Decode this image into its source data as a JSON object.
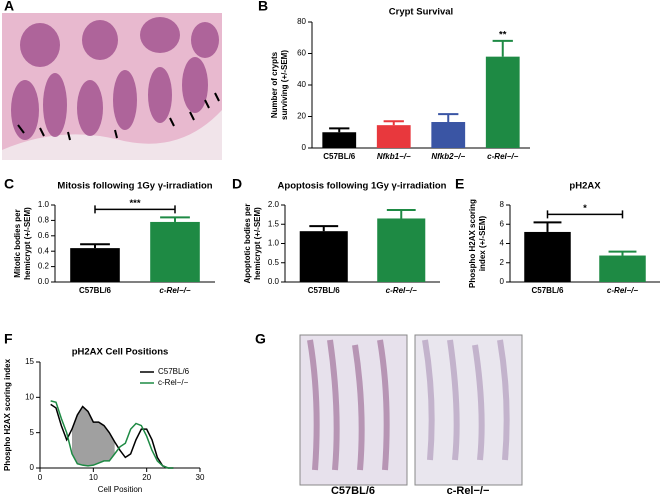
{
  "panel_labels": [
    "A",
    "B",
    "C",
    "D",
    "E",
    "F",
    "G"
  ],
  "images": {
    "g_labels": [
      "C57BL/6",
      "c-Rel−/−"
    ]
  },
  "chart_data": [
    {
      "type": "bar",
      "title": "Crypt Survival",
      "ylabel": [
        "Number of crypts",
        "surviving (+/-SEM)"
      ],
      "categories": [
        "C57BL/6",
        "Nfkb1−/−",
        "Nfkb2−/−",
        "c-Rel−/−"
      ],
      "values": [
        10,
        14.5,
        16.5,
        58
      ],
      "errors": [
        2.5,
        2.5,
        5,
        10
      ],
      "colors": [
        "#000000",
        "#e8383d",
        "#3a55a4",
        "#1e8a44"
      ],
      "ylim": [
        0,
        80
      ],
      "yticks": [
        0,
        20,
        40,
        60,
        80
      ],
      "annotations": [
        {
          "text": "**",
          "category": "c-Rel−/−"
        }
      ]
    },
    {
      "type": "bar",
      "title": "Mitosis following 1Gy γ-irradiation",
      "ylabel": [
        "Mitotic bodies per",
        "hemicrypt (+/-SEM)"
      ],
      "categories": [
        "C57BL/6",
        "c-Rel−/−"
      ],
      "values": [
        0.44,
        0.78
      ],
      "errors": [
        0.05,
        0.06
      ],
      "colors": [
        "#000000",
        "#1e8a44"
      ],
      "ylim": [
        0,
        1
      ],
      "yticks": [
        {
          "value": 0,
          "label": "0.0"
        },
        0.2,
        0.4,
        0.6,
        0.8,
        {
          "value": 1,
          "label": "1.0"
        }
      ],
      "annotations": [
        {
          "text": "***",
          "between": [
            "C57BL/6",
            "c-Rel−/−"
          ]
        }
      ]
    },
    {
      "type": "bar",
      "title": "Apoptosis following 1Gy γ-irradiation",
      "ylabel": [
        "Apoptotic bodies per",
        "hemicrypt (+/-SEM)"
      ],
      "categories": [
        "C57BL/6",
        "c-Rel−/−"
      ],
      "values": [
        1.32,
        1.65
      ],
      "errors": [
        0.13,
        0.22
      ],
      "colors": [
        "#000000",
        "#1e8a44"
      ],
      "ylim": [
        0,
        2
      ],
      "yticks": [
        {
          "value": 0,
          "label": "0.0"
        },
        0.5,
        {
          "value": 1,
          "label": "1.0"
        },
        1.5,
        {
          "value": 2,
          "label": "2.0"
        }
      ],
      "annotations": []
    },
    {
      "type": "bar",
      "title": "pH2AX",
      "ylabel": [
        "Phospho H2AX scoring",
        "index (+/-SEM)"
      ],
      "categories": [
        "C57BL/6",
        "c-Rel−/−"
      ],
      "values": [
        5.2,
        2.75
      ],
      "errors": [
        1.0,
        0.4
      ],
      "colors": [
        "#000000",
        "#1e8a44"
      ],
      "ylim": [
        0,
        8
      ],
      "yticks": [
        0,
        2,
        4,
        6,
        8
      ],
      "annotations": [
        {
          "text": "*",
          "between": [
            "C57BL/6",
            "c-Rel−/−"
          ]
        }
      ]
    },
    {
      "type": "line",
      "title": "pH2AX Cell Positions",
      "xlabel": "Cell Position",
      "ylabel": [
        "Phospho H2AX scoring index"
      ],
      "x": [
        2,
        3,
        4,
        5,
        6,
        7,
        8,
        9,
        10,
        11,
        12,
        13,
        14,
        15,
        16,
        17,
        18,
        19,
        20,
        21,
        22,
        23,
        24,
        25
      ],
      "series": [
        {
          "name": "C57BL/6",
          "color": "#000000",
          "values": [
            9,
            8.5,
            6,
            4,
            5.5,
            7.5,
            8.7,
            8,
            6.5,
            6.5,
            6,
            5,
            3.7,
            2.5,
            1.5,
            2,
            4,
            5.5,
            5.5,
            4,
            1.5,
            0.3,
            0,
            0
          ]
        },
        {
          "name": "c-Rel−/−",
          "color": "#1e8a44",
          "values": [
            9.5,
            9.3,
            7,
            5,
            2,
            0.6,
            0.4,
            0.3,
            0.4,
            0.7,
            1,
            1,
            2,
            3,
            3.5,
            5.5,
            6.3,
            6,
            4.5,
            2.5,
            1,
            0.3,
            0,
            0
          ]
        }
      ],
      "xlim": [
        0,
        30
      ],
      "xticks": [
        0,
        10,
        20,
        30
      ],
      "ylim": [
        0,
        15
      ],
      "yticks": [
        0,
        5,
        10,
        15
      ],
      "shade_color": "#a0a0a0",
      "legend": "top-right"
    }
  ]
}
